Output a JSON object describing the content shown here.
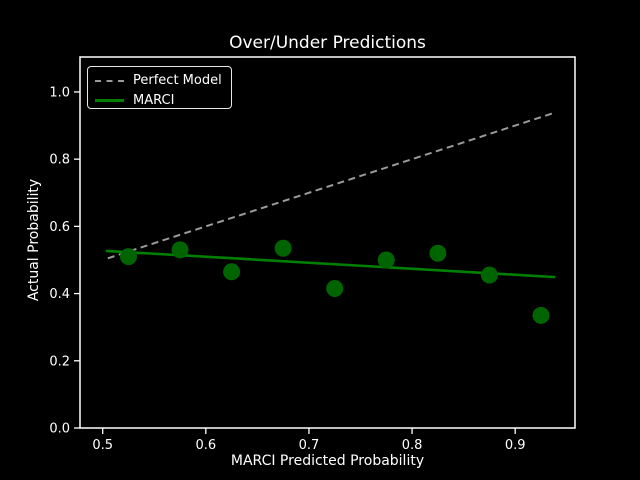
{
  "figure": {
    "title": "Over/Under Predictions",
    "xlabel": "MARCI Predicted Probability",
    "ylabel": "Actual Probability",
    "background_color": "#000000",
    "text_color": "#ffffff",
    "axis_color": "#ffffff"
  },
  "legend": {
    "position": "upper left",
    "entries": [
      {
        "label": "Perfect Model",
        "style": "dashed",
        "color": "#9a9a9a"
      },
      {
        "label": "MARCI",
        "style": "solid",
        "color": "#008000"
      }
    ]
  },
  "chart_data": {
    "type": "scatter",
    "title": "Over/Under Predictions",
    "xlabel": "MARCI Predicted Probability",
    "ylabel": "Actual Probability",
    "xlim": [
      0.478,
      0.958
    ],
    "ylim": [
      0.0,
      1.104
    ],
    "grid": false,
    "legend_position": "upper left",
    "xticks": [
      {
        "value": 0.5,
        "label": "0.5"
      },
      {
        "value": 0.6,
        "label": "0.6"
      },
      {
        "value": 0.7,
        "label": "0.7"
      },
      {
        "value": 0.8,
        "label": "0.8"
      },
      {
        "value": 0.9,
        "label": "0.9"
      }
    ],
    "yticks": [
      {
        "value": 0.0,
        "label": "0.0"
      },
      {
        "value": 0.2,
        "label": "0.2"
      },
      {
        "value": 0.4,
        "label": "0.4"
      },
      {
        "value": 0.6,
        "label": "0.6"
      },
      {
        "value": 0.8,
        "label": "0.8"
      },
      {
        "value": 1.0,
        "label": "1.0"
      }
    ],
    "series": [
      {
        "name": "Perfect Model",
        "kind": "line",
        "style": "dashed",
        "color": "#9a9a9a",
        "line_width": 2,
        "x": [
          0.505,
          0.9365
        ],
        "y": [
          0.505,
          0.9365
        ]
      },
      {
        "name": "MARCI",
        "kind": "line",
        "style": "solid",
        "color": "#008000",
        "line_width": 2.6,
        "x": [
          0.503,
          0.939
        ],
        "y": [
          0.527,
          0.449
        ]
      },
      {
        "name": "MARCI binned points",
        "kind": "scatter",
        "color": "#006400",
        "marker_radius": 8.5,
        "points": [
          [
            0.525,
            0.51
          ],
          [
            0.575,
            0.53
          ],
          [
            0.625,
            0.465
          ],
          [
            0.675,
            0.535
          ],
          [
            0.725,
            0.415
          ],
          [
            0.775,
            0.5
          ],
          [
            0.825,
            0.52
          ],
          [
            0.875,
            0.455
          ],
          [
            0.925,
            0.335
          ]
        ]
      }
    ]
  }
}
